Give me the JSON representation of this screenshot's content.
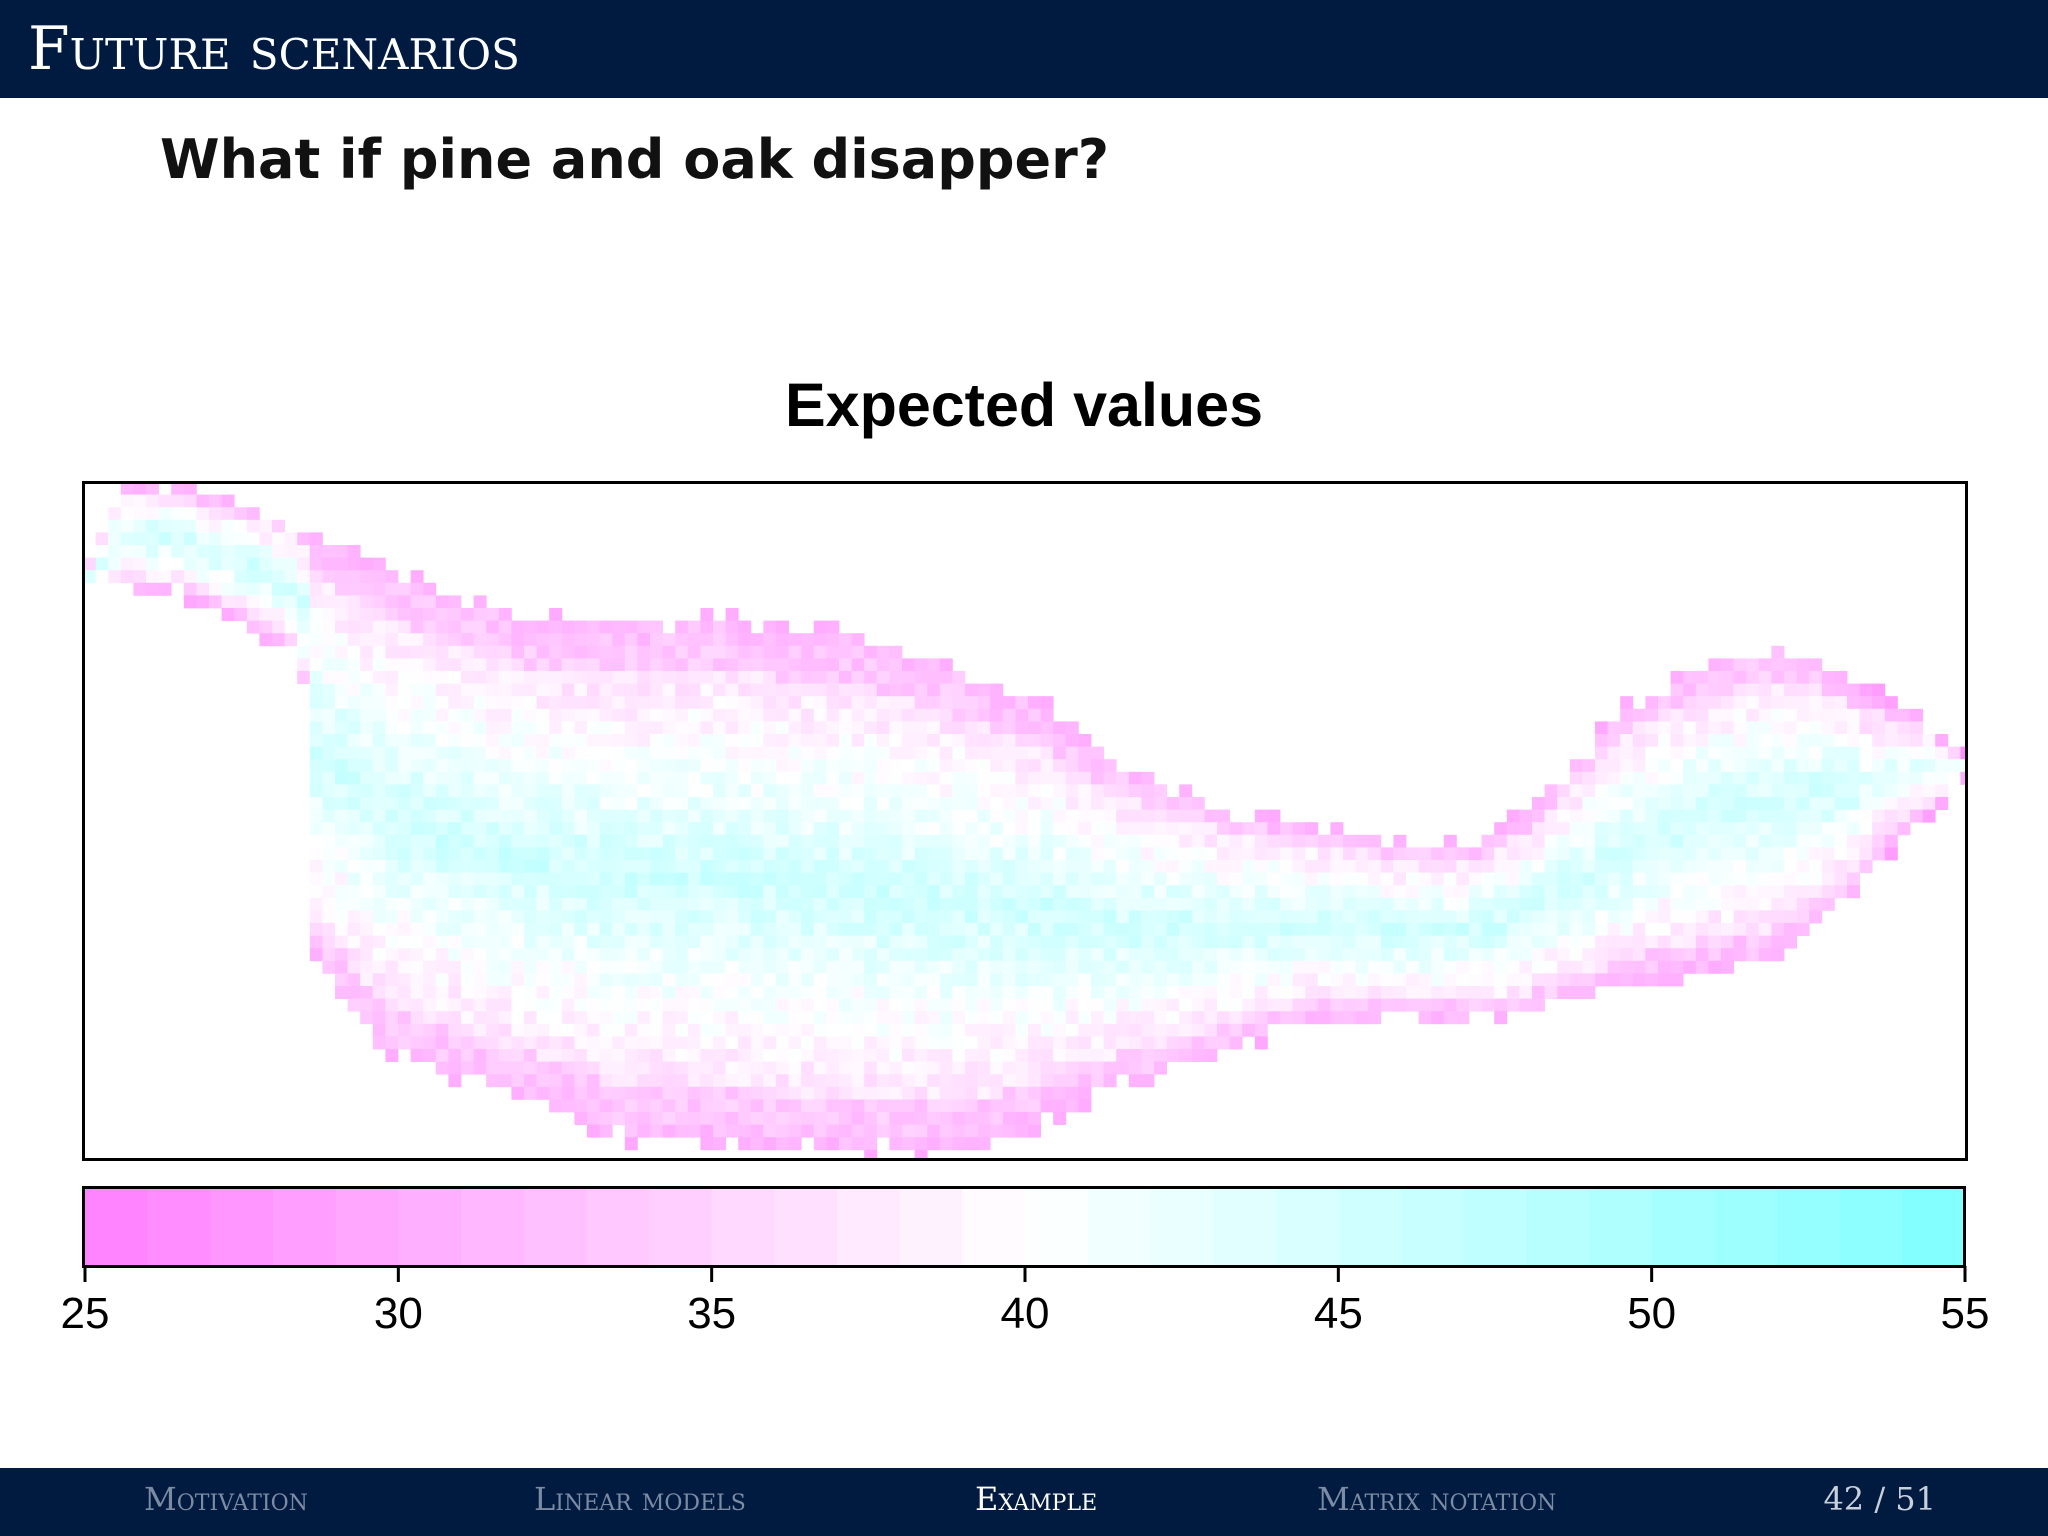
{
  "slide": {
    "title": "Future scenarios",
    "question": "What if pine and oak disapper?"
  },
  "chart_data": {
    "type": "heatmap",
    "title": "Expected values",
    "xlabel": "",
    "ylabel": "",
    "legend": {
      "ticks": [
        "25",
        "30",
        "35",
        "40",
        "45",
        "50",
        "55"
      ],
      "range": [
        25,
        55
      ],
      "low_color": "#ff80ff",
      "mid_color": "#ffffff",
      "high_color": "#80ffff",
      "placement": "bottom"
    }
  },
  "footer": {
    "nav": [
      {
        "label": "Motivation",
        "active": false
      },
      {
        "label": "Linear models",
        "active": false
      },
      {
        "label": "Example",
        "active": true
      },
      {
        "label": "Matrix notation",
        "active": false
      }
    ],
    "page": "42 / 51"
  }
}
